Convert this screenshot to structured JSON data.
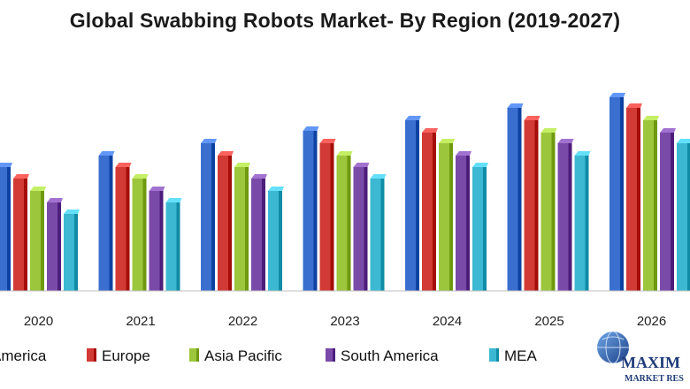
{
  "chart_data": {
    "type": "bar",
    "title": "Global Swabbing Robots Market- By Region (2019-2027)",
    "xlabel": "",
    "ylabel": "",
    "categories": [
      "2020",
      "2021",
      "2022",
      "2023",
      "2024",
      "2025",
      "2026"
    ],
    "series": [
      {
        "name": "America",
        "color": "#3a6fcf",
        "values": [
          140,
          153,
          167,
          181,
          193,
          207,
          219
        ]
      },
      {
        "name": "Europe",
        "color": "#d23a35",
        "values": [
          127,
          140,
          153,
          167,
          179,
          193,
          207
        ]
      },
      {
        "name": "Asia Pacific",
        "color": "#9cc63b",
        "values": [
          113,
          127,
          140,
          153,
          167,
          179,
          193
        ]
      },
      {
        "name": "South America",
        "color": "#7a4aa8",
        "values": [
          100,
          113,
          127,
          140,
          153,
          167,
          179
        ]
      },
      {
        "name": "MEA",
        "color": "#3cb8d2",
        "values": [
          87,
          100,
          113,
          127,
          140,
          153,
          167
        ]
      }
    ],
    "ylim": [
      0,
      230
    ],
    "grid": false,
    "legend_position": "bottom"
  },
  "logo": {
    "text_main": "MAXIM",
    "text_sub": "MARKET RES",
    "icon": "globe-icon"
  }
}
